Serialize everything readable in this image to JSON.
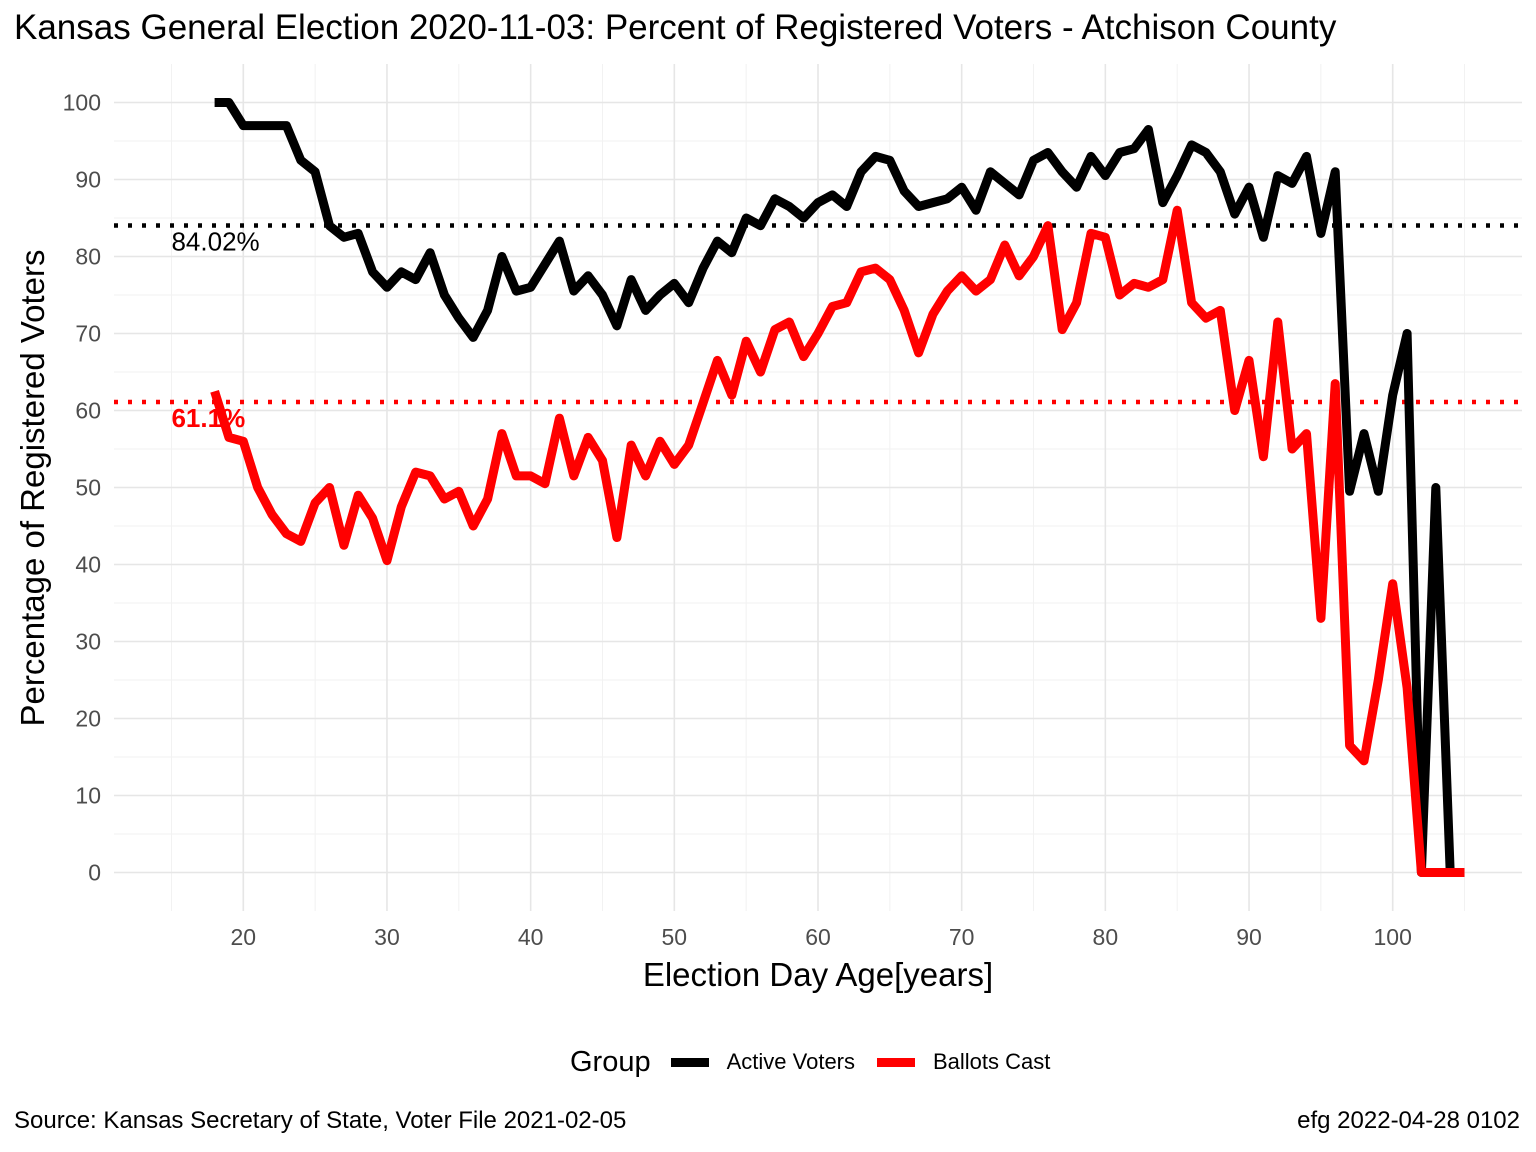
{
  "title": "Kansas General Election 2020-11-03:  Percent of Registered Voters - Atchison County",
  "footer": {
    "source": "Source:  Kansas Secretary of State, Voter File  2021-02-05",
    "credit": "efg 2022-04-28 0102"
  },
  "legend": {
    "title": "Group",
    "items": [
      {
        "label": "Active Voters",
        "color": "#000000"
      },
      {
        "label": "Ballots Cast",
        "color": "#ff0000"
      }
    ]
  },
  "chart_data": {
    "type": "line",
    "xlabel": "Election Day Age[years]",
    "ylabel": "Percentage of Registered Voters",
    "xlim": [
      11,
      109
    ],
    "ylim": [
      -5,
      105
    ],
    "x_ticks": [
      20,
      30,
      40,
      50,
      60,
      70,
      80,
      90,
      100
    ],
    "y_ticks": [
      0,
      10,
      20,
      30,
      40,
      50,
      60,
      70,
      80,
      90,
      100
    ],
    "grid": true,
    "legend_position": "bottom",
    "reference_lines": [
      {
        "value": 84.02,
        "label": "84.02%",
        "color": "#000000",
        "label_x": 15
      },
      {
        "value": 61.1,
        "label": "61.1%",
        "color": "#ff0000",
        "label_x": 15
      }
    ],
    "series": [
      {
        "name": "Active Voters",
        "color": "#000000",
        "x": [
          18,
          19,
          20,
          21,
          22,
          23,
          24,
          25,
          26,
          27,
          28,
          29,
          30,
          31,
          32,
          33,
          34,
          35,
          36,
          37,
          38,
          39,
          40,
          41,
          42,
          43,
          44,
          45,
          46,
          47,
          48,
          49,
          50,
          51,
          52,
          53,
          54,
          55,
          56,
          57,
          58,
          59,
          60,
          61,
          62,
          63,
          64,
          65,
          66,
          67,
          68,
          69,
          70,
          71,
          72,
          73,
          74,
          75,
          76,
          77,
          78,
          79,
          80,
          81,
          82,
          83,
          84,
          85,
          86,
          87,
          88,
          89,
          90,
          91,
          92,
          93,
          94,
          95,
          96,
          97,
          98,
          99,
          100,
          101,
          102,
          103,
          104
        ],
        "y": [
          100,
          100,
          97,
          97,
          97,
          97,
          92.5,
          91,
          84,
          82.5,
          83,
          78,
          76,
          78,
          77,
          80.5,
          75,
          72,
          69.5,
          73,
          80,
          75.5,
          76,
          79,
          82,
          75.5,
          77.5,
          75,
          71,
          77,
          73,
          75,
          76.5,
          74,
          78.5,
          82,
          80.5,
          85,
          84,
          87.5,
          86.5,
          85,
          87,
          88,
          86.5,
          91,
          93,
          92.5,
          88.5,
          86.5,
          87,
          87.5,
          89,
          86,
          91,
          89.5,
          88,
          92.5,
          93.5,
          91,
          89,
          93,
          90.5,
          93.5,
          94,
          96.5,
          87,
          90.5,
          94.5,
          93.5,
          91,
          85.5,
          89,
          82.5,
          90.5,
          89.5,
          93,
          83,
          91,
          49.5,
          57,
          49.5,
          62,
          70,
          0,
          50,
          0
        ]
      },
      {
        "name": "Ballots Cast",
        "color": "#ff0000",
        "x": [
          18,
          19,
          20,
          21,
          22,
          23,
          24,
          25,
          26,
          27,
          28,
          29,
          30,
          31,
          32,
          33,
          34,
          35,
          36,
          37,
          38,
          39,
          40,
          41,
          42,
          43,
          44,
          45,
          46,
          47,
          48,
          49,
          50,
          51,
          52,
          53,
          54,
          55,
          56,
          57,
          58,
          59,
          60,
          61,
          62,
          63,
          64,
          65,
          66,
          67,
          68,
          69,
          70,
          71,
          72,
          73,
          74,
          75,
          76,
          77,
          78,
          79,
          80,
          81,
          82,
          83,
          84,
          85,
          86,
          87,
          88,
          89,
          90,
          91,
          92,
          93,
          94,
          95,
          96,
          97,
          98,
          99,
          100,
          101,
          102,
          103,
          104,
          105
        ],
        "y": [
          62.5,
          56.5,
          56,
          50,
          46.5,
          44,
          43,
          48,
          50,
          42.5,
          49,
          46,
          40.5,
          47.5,
          52,
          51.5,
          48.5,
          49.5,
          45,
          48.5,
          57,
          51.5,
          51.5,
          50.5,
          59,
          51.5,
          56.5,
          53.5,
          43.5,
          55.5,
          51.5,
          56,
          53,
          55.5,
          61,
          66.5,
          62,
          69,
          65,
          70.5,
          71.5,
          67,
          70,
          73.5,
          74,
          78,
          78.5,
          77,
          73,
          67.5,
          72.5,
          75.5,
          77.5,
          75.5,
          77,
          81.5,
          77.5,
          80,
          84,
          70.5,
          74,
          83,
          82.5,
          75,
          76.5,
          76,
          77,
          86,
          74,
          72,
          73,
          60,
          66.5,
          54,
          71.5,
          55,
          57,
          33,
          63.5,
          16.5,
          14.5,
          25,
          37.5,
          24,
          0,
          0,
          0,
          0
        ]
      }
    ]
  }
}
